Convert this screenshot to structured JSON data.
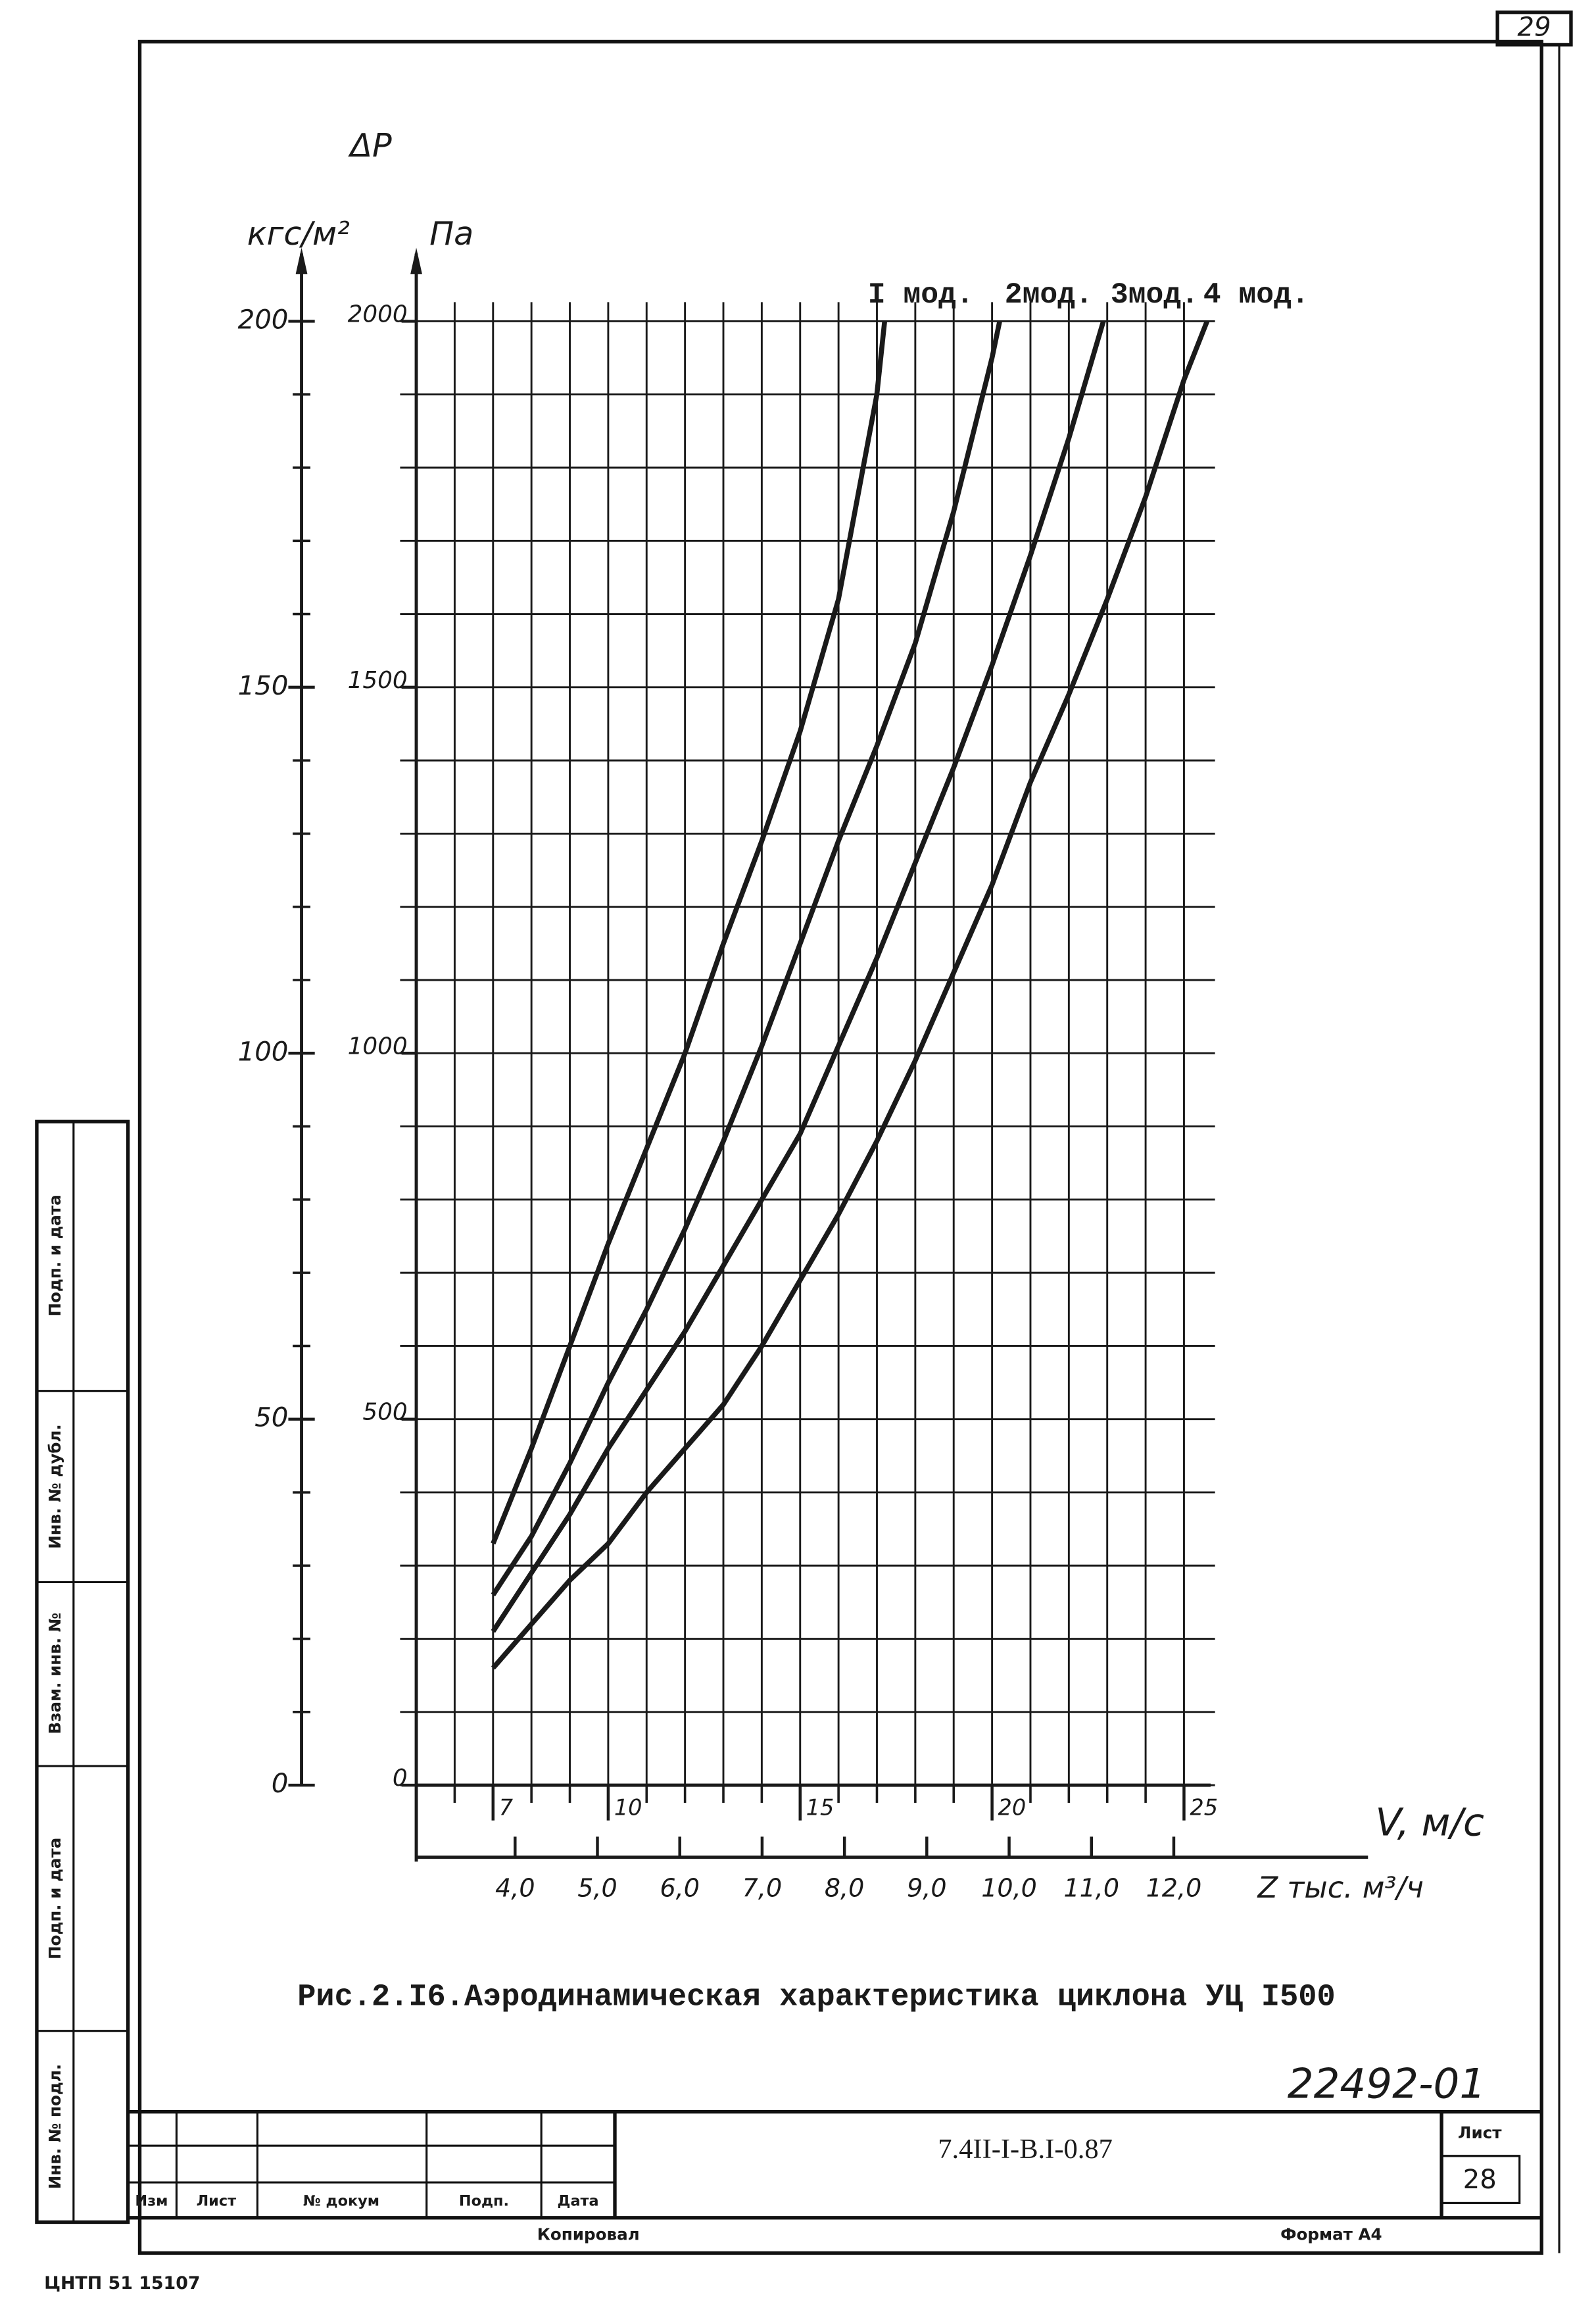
{
  "chart_data": {
    "type": "line",
    "y_label_main": "ΔP",
    "y2_label": "кгс/м²",
    "y_label": "Па",
    "x_label": "V, м/с",
    "x2_label": "Z тыс. м³/ч",
    "xlim": [
      5,
      26
    ],
    "xticks": [
      7,
      10,
      15,
      20,
      25
    ],
    "xminorticks": [
      6,
      8,
      9,
      11,
      12,
      13,
      14,
      16,
      17,
      18,
      19,
      21,
      22,
      23,
      24
    ],
    "ylim": [
      0,
      2000
    ],
    "yticks": [
      0,
      500,
      1000,
      1500,
      2000
    ],
    "yminorticks": [
      100,
      200,
      300,
      400,
      600,
      700,
      800,
      900,
      1100,
      1200,
      1300,
      1400,
      1600,
      1700,
      1800,
      1900
    ],
    "y2lim": [
      0,
      200
    ],
    "y2ticks": [
      0,
      50,
      100,
      150,
      200
    ],
    "y2minorticks": [
      10,
      20,
      30,
      40,
      60,
      70,
      80,
      90,
      110,
      120,
      130,
      140,
      160,
      170,
      180,
      190
    ],
    "x2lim": [
      2.8,
      12.59
    ],
    "x2ticks": [
      {
        "value": 4,
        "label": "4,0"
      },
      {
        "value": 5,
        "label": "5,0"
      },
      {
        "value": 6,
        "label": "6,0"
      },
      {
        "value": 7,
        "label": "7,0"
      },
      {
        "value": 8,
        "label": "8,0"
      },
      {
        "value": 9,
        "label": "9,0"
      },
      {
        "value": 10,
        "label": "10,0"
      },
      {
        "value": 11,
        "label": "11,0"
      },
      {
        "value": 12,
        "label": "12,0"
      }
    ],
    "grid": true,
    "color": "#1a1a1a",
    "series": [
      {
        "name": "I мод.",
        "x": [
          7,
          8,
          9,
          10,
          11,
          12,
          13,
          14,
          15,
          16,
          17,
          17.2
        ],
        "values": [
          330,
          460,
          600,
          740,
          870,
          1000,
          1150,
          1290,
          1440,
          1620,
          1900,
          2000
        ]
      },
      {
        "name": "2мод.",
        "x": [
          7,
          8,
          9,
          10,
          11,
          12,
          13,
          14,
          15,
          16,
          17,
          18,
          19,
          20,
          20.2
        ],
        "values": [
          260,
          340,
          440,
          550,
          650,
          760,
          880,
          1010,
          1150,
          1290,
          1420,
          1560,
          1740,
          1950,
          2000
        ]
      },
      {
        "name": "3мод.",
        "x": [
          7,
          8,
          9,
          10,
          11,
          12,
          13,
          14,
          15,
          16,
          17,
          18,
          19,
          20,
          21,
          22,
          22.9
        ],
        "values": [
          210,
          290,
          370,
          460,
          540,
          620,
          710,
          800,
          890,
          1010,
          1130,
          1260,
          1390,
          1530,
          1680,
          1840,
          2000
        ]
      },
      {
        "name": "4 мод.",
        "x": [
          7,
          8,
          9,
          10,
          11,
          12,
          13,
          14,
          15,
          16,
          17,
          18,
          19,
          20,
          21,
          22,
          23,
          24,
          25,
          25.6
        ],
        "values": [
          160,
          220,
          280,
          330,
          400,
          460,
          520,
          600,
          690,
          780,
          880,
          990,
          1110,
          1230,
          1370,
          1490,
          1620,
          1760,
          1920,
          2000
        ]
      }
    ]
  },
  "document": {
    "page_number": "29",
    "caption": "Рис.2.I6.Аэродинамическая характеристика циклона УЦ I500",
    "code": "22492-01",
    "designation": "7.4II-I-B.I-0.87",
    "sheet_label": "Лист",
    "sheet_number": "28",
    "columns": [
      "Изм",
      "Лист",
      "№ докум",
      "Подп.",
      "Дата"
    ],
    "copied": "Копировал",
    "format": "Формат А4",
    "print_mark": "ЦНТП 51 15107",
    "side_stamp": [
      "Инв. № подл.",
      "Подп. и дата",
      "Взам. инв. №",
      "Инв. № дубл.",
      "Подп. и дата"
    ]
  }
}
